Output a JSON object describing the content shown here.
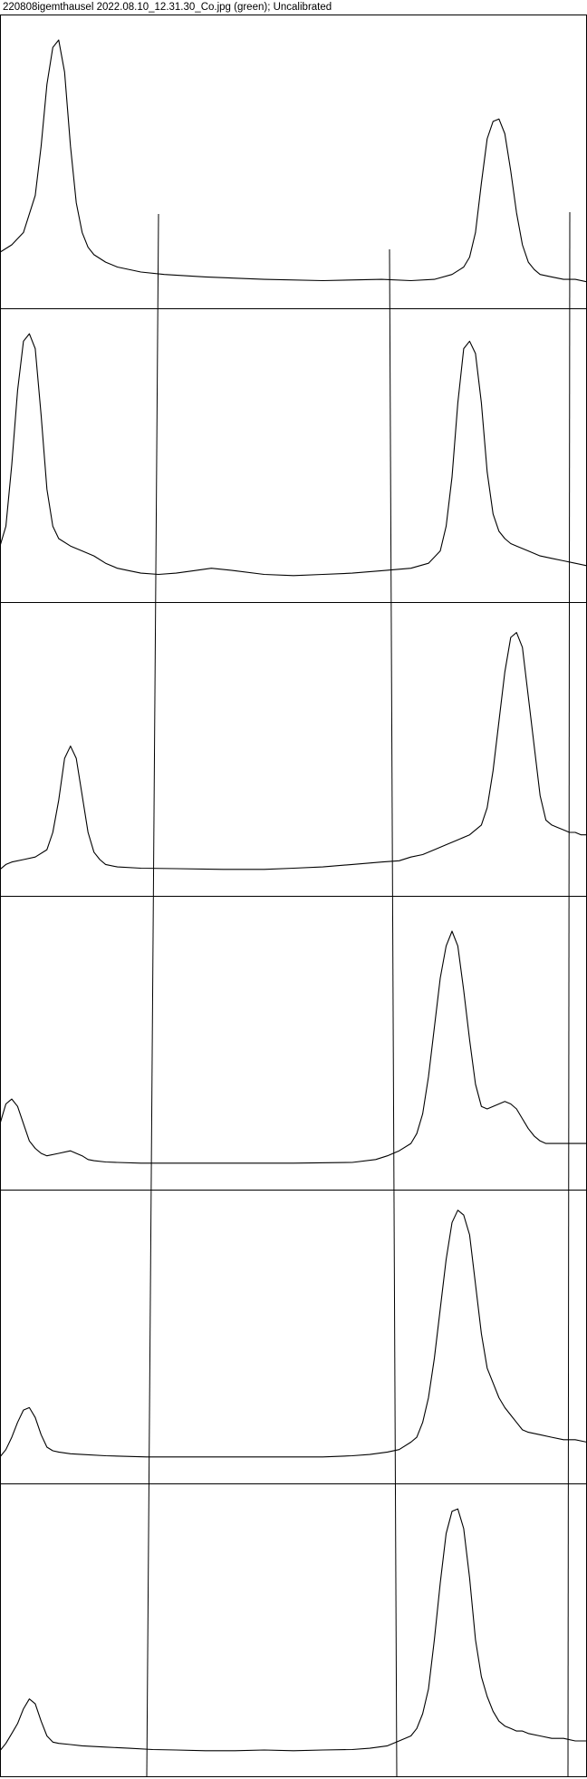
{
  "window": {
    "title": "220808igemthausel 2022.08.10_12.31.30_Co.jpg (green); Uncalibrated"
  },
  "chart_data": {
    "type": "line",
    "title": "220808igemthausel 2022.08.10_12.31.30_Co.jpg (green); Uncalibrated",
    "panel_count": 6,
    "x_domain": [
      0,
      100
    ],
    "y_domain": [
      0,
      100
    ],
    "xlabel": "",
    "ylabel": "",
    "grid": false,
    "legend": "none",
    "line_color": "#000000",
    "series": [
      {
        "x": [
          0,
          2,
          4,
          6,
          7,
          8,
          9,
          10,
          11,
          12,
          13,
          14,
          15,
          16,
          18,
          20,
          24,
          28,
          35,
          45,
          55,
          65,
          70,
          74,
          77,
          79,
          80,
          81,
          82,
          83,
          84,
          85,
          86,
          87,
          88,
          89,
          90,
          91,
          92,
          94,
          96,
          98,
          100
        ],
        "y": [
          12,
          15,
          20,
          35,
          55,
          80,
          95,
          98,
          85,
          55,
          32,
          20,
          14,
          11,
          8,
          6,
          4,
          3,
          2,
          1,
          0.5,
          1,
          0.5,
          1,
          3,
          6,
          10,
          20,
          40,
          58,
          65,
          66,
          60,
          45,
          28,
          15,
          8,
          5,
          3,
          2,
          1,
          1,
          0
        ]
      },
      {
        "x": [
          0,
          1,
          2,
          3,
          4,
          5,
          6,
          7,
          8,
          9,
          10,
          12,
          14,
          16,
          18,
          20,
          22,
          24,
          27,
          30,
          33,
          36,
          40,
          45,
          50,
          55,
          60,
          65,
          70,
          73,
          75,
          76,
          77,
          78,
          79,
          80,
          81,
          82,
          83,
          84,
          85,
          86,
          87,
          88,
          90,
          92,
          94,
          96,
          98,
          100
        ],
        "y": [
          12,
          20,
          45,
          75,
          95,
          98,
          92,
          65,
          35,
          20,
          15,
          12,
          10,
          8,
          5,
          3,
          2,
          1,
          0.5,
          1,
          2,
          3,
          2,
          0.5,
          0,
          0.5,
          1,
          2,
          3,
          5,
          10,
          20,
          40,
          70,
          92,
          95,
          90,
          70,
          42,
          25,
          18,
          15,
          13,
          12,
          10,
          8,
          7,
          6,
          5,
          4
        ]
      },
      {
        "x": [
          0,
          1,
          2,
          4,
          6,
          8,
          9,
          10,
          11,
          12,
          13,
          14,
          15,
          16,
          17,
          18,
          20,
          24,
          30,
          38,
          45,
          50,
          55,
          60,
          65,
          68,
          70,
          72,
          74,
          76,
          78,
          80,
          82,
          83,
          84,
          85,
          86,
          87,
          88,
          89,
          90,
          91,
          92,
          93,
          94,
          95,
          96,
          97,
          98,
          99,
          100
        ],
        "y": [
          0,
          2,
          3,
          4,
          5,
          8,
          15,
          28,
          45,
          50,
          45,
          30,
          15,
          7,
          4,
          2,
          1,
          0.5,
          0.3,
          0,
          0,
          0.5,
          1,
          2,
          3,
          3.5,
          5,
          6,
          8,
          10,
          12,
          14,
          18,
          25,
          40,
          60,
          80,
          94,
          96,
          90,
          70,
          50,
          30,
          20,
          18,
          17,
          16,
          15,
          15,
          14,
          14
        ]
      },
      {
        "x": [
          0,
          1,
          2,
          3,
          4,
          5,
          6,
          7,
          8,
          10,
          12,
          13,
          14,
          15,
          16,
          18,
          20,
          24,
          30,
          40,
          50,
          60,
          64,
          66,
          68,
          70,
          71,
          72,
          73,
          74,
          75,
          76,
          77,
          78,
          79,
          80,
          81,
          82,
          83,
          84,
          85,
          86,
          87,
          88,
          89,
          90,
          91,
          92,
          93,
          94,
          95,
          96,
          98,
          100
        ],
        "y": [
          16,
          24,
          26,
          23,
          16,
          9,
          6,
          4,
          3,
          4,
          5,
          4,
          3,
          1.5,
          1,
          0.5,
          0.3,
          0,
          0,
          0,
          0,
          0.3,
          1.5,
          3,
          5,
          8,
          12,
          20,
          35,
          55,
          75,
          88,
          94,
          88,
          70,
          50,
          32,
          23,
          22,
          23,
          24,
          25,
          24,
          22,
          18,
          14,
          11,
          9,
          8,
          8,
          8,
          8,
          8,
          8
        ]
      },
      {
        "x": [
          0,
          1,
          2,
          3,
          4,
          5,
          6,
          7,
          8,
          9,
          10,
          12,
          14,
          18,
          25,
          35,
          45,
          55,
          60,
          63,
          66,
          68,
          70,
          71,
          72,
          73,
          74,
          75,
          76,
          77,
          78,
          79,
          80,
          81,
          82,
          83,
          84,
          85,
          86,
          87,
          88,
          89,
          90,
          92,
          94,
          96,
          98,
          100
        ],
        "y": [
          0,
          3,
          8,
          14,
          19,
          20,
          16,
          9,
          4,
          2.5,
          2,
          1.3,
          1,
          0.5,
          0,
          0,
          0,
          0,
          0.5,
          1,
          2,
          3,
          6,
          8,
          14,
          24,
          40,
          60,
          80,
          95,
          100,
          98,
          90,
          70,
          50,
          36,
          30,
          24,
          20,
          17,
          14,
          11,
          10,
          9,
          8,
          7,
          7,
          6
        ]
      },
      {
        "x": [
          0,
          1,
          2,
          3,
          4,
          5,
          6,
          7,
          8,
          9,
          10,
          12,
          14,
          18,
          22,
          26,
          30,
          35,
          40,
          45,
          50,
          55,
          60,
          63,
          66,
          68,
          70,
          71,
          72,
          73,
          74,
          75,
          76,
          77,
          78,
          79,
          80,
          81,
          82,
          83,
          84,
          85,
          86,
          87,
          88,
          89,
          90,
          92,
          94,
          96,
          98,
          100
        ],
        "y": [
          0,
          3,
          7,
          11,
          17,
          21,
          19,
          12,
          6,
          3.5,
          3,
          2.5,
          2,
          1.5,
          1,
          0.5,
          0.3,
          0,
          0,
          0.3,
          0,
          0.3,
          0.5,
          1,
          2,
          4,
          6,
          9,
          15,
          25,
          45,
          68,
          88,
          97,
          98,
          90,
          70,
          45,
          30,
          22,
          16,
          12,
          10,
          9,
          8,
          8,
          7,
          6,
          5,
          5,
          4,
          4
        ]
      }
    ]
  }
}
